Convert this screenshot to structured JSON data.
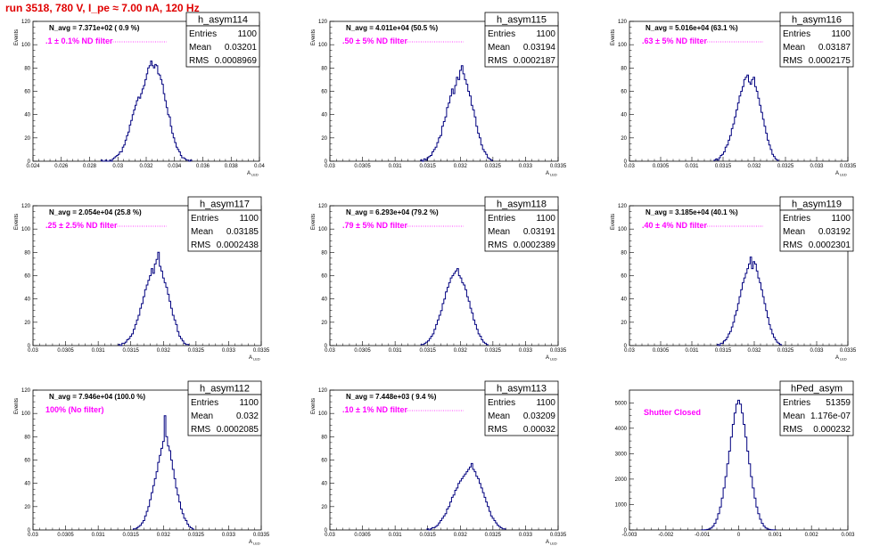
{
  "header": {
    "title": "run 3518,   780 V, I_pe ≈ 7.00 nA, 120 Hz"
  },
  "colors": {
    "title": "#e00000",
    "histogram": "#00007f",
    "filter_text": "#ff00ff"
  },
  "chart_data": [
    {
      "type": "histogram",
      "name": "h_asym114",
      "stats": {
        "Entries": "1100",
        "Mean": "0.03201",
        "RMS": "0.0008969"
      },
      "navg": "N_avg = 7.371e+02 ( 0.9 %)",
      "filter": ".1 ± 0.1% ND filter",
      "ylabel": "Events",
      "xlabel": "A_LED",
      "xlim": [
        0.024,
        0.04
      ],
      "ylim": [
        0,
        120
      ],
      "xticks": [
        "0.024",
        "0.026",
        "0.028",
        "0.03",
        "0.032",
        "0.034",
        "0.036",
        "0.038",
        "0.04"
      ],
      "yticks": [
        "0",
        "20",
        "40",
        "60",
        "80",
        "100",
        "120"
      ],
      "mean": 0.03201,
      "rms": 0.0008969,
      "peak": 86,
      "bin": 0.0001,
      "counts": [
        1,
        0,
        0,
        1,
        0,
        0,
        1,
        0,
        2,
        3,
        4,
        5,
        6,
        8,
        8,
        12,
        14,
        18,
        22,
        25,
        31,
        35,
        40,
        44,
        48,
        52,
        55,
        54,
        58,
        62,
        65,
        70,
        75,
        80,
        82,
        86,
        82,
        80,
        83,
        82,
        75,
        74,
        70,
        66,
        58,
        52,
        46,
        40,
        38,
        30,
        24,
        20,
        16,
        12,
        10,
        8,
        5,
        3,
        3,
        2,
        1,
        1,
        0,
        1
      ]
    },
    {
      "type": "histogram",
      "name": "h_asym115",
      "stats": {
        "Entries": "1100",
        "Mean": "0.03194",
        "RMS": "0.0002187"
      },
      "navg": "N_avg = 4.011e+04 (50.5 %)",
      "filter": ".50 ± 5% ND filter",
      "ylabel": "Events",
      "xlabel": "A_LED",
      "xlim": [
        0.03,
        0.0335
      ],
      "ylim": [
        0,
        120
      ],
      "xticks": [
        "0.03",
        "0.0305",
        "0.031",
        "0.0315",
        "0.032",
        "0.0325",
        "0.033",
        "0.0335"
      ],
      "yticks": [
        "0",
        "20",
        "40",
        "60",
        "80",
        "100",
        "120"
      ],
      "mean": 0.03194,
      "rms": 0.0002187,
      "peak": 82,
      "bin": 2.5e-05,
      "counts": [
        1,
        0,
        2,
        1,
        3,
        4,
        5,
        8,
        10,
        12,
        16,
        20,
        22,
        30,
        34,
        38,
        46,
        50,
        56,
        62,
        58,
        65,
        72,
        70,
        78,
        82,
        75,
        70,
        66,
        60,
        56,
        48,
        44,
        38,
        30,
        24,
        20,
        14,
        10,
        8,
        6,
        3,
        2,
        1
      ]
    },
    {
      "type": "histogram",
      "name": "h_asym116",
      "stats": {
        "Entries": "1100",
        "Mean": "0.03187",
        "RMS": "0.0002175"
      },
      "navg": "N_avg = 5.016e+04 (63.1 %)",
      "filter": ".63 ± 5% ND filter",
      "ylabel": "Events",
      "xlabel": "A_LED",
      "xlim": [
        0.03,
        0.0335
      ],
      "ylim": [
        0,
        120
      ],
      "xticks": [
        "0.03",
        "0.0305",
        "0.031",
        "0.0315",
        "0.032",
        "0.0325",
        "0.033",
        "0.0335"
      ],
      "yticks": [
        "0",
        "20",
        "40",
        "60",
        "80",
        "100",
        "120"
      ],
      "mean": 0.03187,
      "rms": 0.0002175,
      "peak": 74,
      "bin": 2.5e-05,
      "counts": [
        1,
        2,
        1,
        3,
        5,
        6,
        8,
        12,
        14,
        18,
        22,
        28,
        32,
        38,
        44,
        50,
        56,
        60,
        64,
        70,
        72,
        74,
        68,
        66,
        70,
        72,
        64,
        60,
        54,
        48,
        42,
        36,
        30,
        24,
        18,
        14,
        10,
        6,
        4,
        2,
        1
      ]
    },
    {
      "type": "histogram",
      "name": "h_asym117",
      "stats": {
        "Entries": "1100",
        "Mean": "0.03185",
        "RMS": "0.0002438"
      },
      "navg": "N_avg = 2.054e+04 (25.8 %)",
      "filter": ".25 ± 2.5% ND filter",
      "ylabel": "Events",
      "xlabel": "A_LED",
      "xlim": [
        0.03,
        0.0335
      ],
      "ylim": [
        0,
        120
      ],
      "xticks": [
        "0.03",
        "0.0305",
        "0.031",
        "0.0315",
        "0.032",
        "0.0325",
        "0.033",
        "0.0335"
      ],
      "yticks": [
        "0",
        "20",
        "40",
        "60",
        "80",
        "100",
        "120"
      ],
      "mean": 0.03185,
      "rms": 0.0002438,
      "peak": 80,
      "bin": 2.5e-05,
      "counts": [
        1,
        0,
        2,
        2,
        3,
        5,
        6,
        8,
        10,
        14,
        18,
        22,
        26,
        32,
        36,
        42,
        48,
        52,
        56,
        60,
        66,
        62,
        70,
        74,
        80,
        68,
        64,
        58,
        54,
        50,
        44,
        38,
        32,
        26,
        22,
        18,
        12,
        8,
        6,
        4,
        2,
        1,
        1
      ]
    },
    {
      "type": "histogram",
      "name": "h_asym118",
      "stats": {
        "Entries": "1100",
        "Mean": "0.03191",
        "RMS": "0.0002389"
      },
      "navg": "N_avg = 6.293e+04 (79.2 %)",
      "filter": ".79 ± 5% ND filter",
      "ylabel": "Events",
      "xlabel": "A_LED",
      "xlim": [
        0.03,
        0.0335
      ],
      "ylim": [
        0,
        120
      ],
      "xticks": [
        "0.03",
        "0.0305",
        "0.031",
        "0.0315",
        "0.032",
        "0.0325",
        "0.033",
        "0.0335"
      ],
      "yticks": [
        "0",
        "20",
        "40",
        "60",
        "80",
        "100",
        "120"
      ],
      "mean": 0.03191,
      "rms": 0.0002389,
      "peak": 66,
      "bin": 2.5e-05,
      "counts": [
        1,
        1,
        2,
        3,
        4,
        6,
        8,
        10,
        14,
        18,
        22,
        26,
        30,
        36,
        40,
        46,
        50,
        54,
        58,
        60,
        62,
        64,
        66,
        60,
        58,
        54,
        52,
        48,
        42,
        38,
        32,
        28,
        22,
        18,
        14,
        10,
        8,
        5,
        3,
        2,
        1
      ]
    },
    {
      "type": "histogram",
      "name": "h_asym119",
      "stats": {
        "Entries": "1100",
        "Mean": "0.03192",
        "RMS": "0.0002301"
      },
      "navg": "N_avg = 3.185e+04 (40.1 %)",
      "filter": ".40 ± 4% ND filter",
      "ylabel": "Events",
      "xlabel": "A_LED",
      "xlim": [
        0.03,
        0.0335
      ],
      "ylim": [
        0,
        120
      ],
      "xticks": [
        "0.03",
        "0.0305",
        "0.031",
        "0.0315",
        "0.032",
        "0.0325",
        "0.033",
        "0.0335"
      ],
      "yticks": [
        "0",
        "20",
        "40",
        "60",
        "80",
        "100",
        "120"
      ],
      "mean": 0.03192,
      "rms": 0.0002301,
      "peak": 76,
      "bin": 2.5e-05,
      "counts": [
        1,
        0,
        2,
        2,
        4,
        5,
        7,
        10,
        12,
        16,
        20,
        26,
        30,
        36,
        42,
        48,
        54,
        58,
        62,
        66,
        70,
        76,
        66,
        72,
        70,
        64,
        58,
        54,
        48,
        42,
        36,
        30,
        24,
        18,
        14,
        10,
        7,
        5,
        3,
        2,
        1
      ]
    },
    {
      "type": "histogram",
      "name": "h_asym112",
      "stats": {
        "Entries": "1100",
        "Mean": "0.032",
        "RMS": "0.0002085"
      },
      "navg": "N_avg = 7.946e+04 (100.0 %)",
      "filter": "100% (No filter)",
      "ylabel": "Events",
      "xlabel": "A_LED",
      "xlim": [
        0.03,
        0.0335
      ],
      "ylim": [
        0,
        120
      ],
      "xticks": [
        "0.03",
        "0.0305",
        "0.031",
        "0.0315",
        "0.032",
        "0.0325",
        "0.033",
        "0.0335"
      ],
      "yticks": [
        "0",
        "20",
        "40",
        "60",
        "80",
        "100",
        "120"
      ],
      "mean": 0.032,
      "rms": 0.0002085,
      "peak": 98,
      "bin": 2.5e-05,
      "counts": [
        1,
        1,
        2,
        3,
        4,
        6,
        8,
        12,
        16,
        20,
        26,
        32,
        38,
        44,
        50,
        58,
        64,
        70,
        76,
        98,
        80,
        72,
        68,
        60,
        52,
        44,
        36,
        30,
        24,
        18,
        14,
        10,
        8,
        5,
        3,
        2,
        1
      ]
    },
    {
      "type": "histogram",
      "name": "h_asym113",
      "stats": {
        "Entries": "1100",
        "Mean": "0.03209",
        "RMS": "0.00032"
      },
      "navg": "N_avg = 7.448e+03 ( 9.4 %)",
      "filter": ".10 ± 1% ND filter",
      "ylabel": "Events",
      "xlabel": "A_LED",
      "xlim": [
        0.03,
        0.0335
      ],
      "ylim": [
        0,
        120
      ],
      "xticks": [
        "0.03",
        "0.0305",
        "0.031",
        "0.0315",
        "0.032",
        "0.0325",
        "0.033",
        "0.0335"
      ],
      "yticks": [
        "0",
        "20",
        "40",
        "60",
        "80",
        "100",
        "120"
      ],
      "mean": 0.03209,
      "rms": 0.00032,
      "peak": 57,
      "bin": 2.5e-05,
      "counts": [
        1,
        0,
        1,
        2,
        2,
        3,
        4,
        6,
        8,
        10,
        12,
        14,
        18,
        20,
        24,
        28,
        30,
        34,
        36,
        40,
        42,
        44,
        46,
        48,
        50,
        52,
        54,
        57,
        52,
        50,
        46,
        44,
        40,
        36,
        32,
        28,
        24,
        20,
        16,
        12,
        10,
        8,
        6,
        4,
        3,
        2,
        1,
        1
      ]
    },
    {
      "type": "histogram",
      "name": "hPed_asym",
      "stats": {
        "Entries": "51359",
        "Mean": "1.176e-07",
        "RMS": "0.000232"
      },
      "navg": "",
      "filter": "Shutter Closed",
      "ylabel": "",
      "xlabel": "",
      "xlim": [
        -0.003,
        0.003
      ],
      "ylim": [
        0,
        5500
      ],
      "xticks": [
        "-0.003",
        "-0.002",
        "-0.001",
        "0",
        "0.001",
        "0.002",
        "0.003"
      ],
      "yticks": [
        "0",
        "1000",
        "2000",
        "3000",
        "4000",
        "5000"
      ],
      "mean": 0.0,
      "rms": 0.000232,
      "peak": 5100,
      "bin": 5e-05,
      "counts": [
        2,
        5,
        10,
        20,
        40,
        80,
        150,
        260,
        420,
        640,
        900,
        1250,
        1650,
        2100,
        2600,
        3100,
        3650,
        4150,
        4600,
        4950,
        5100,
        4950,
        4600,
        4150,
        3650,
        3100,
        2600,
        2100,
        1650,
        1250,
        900,
        640,
        420,
        260,
        150,
        80,
        40,
        20,
        10,
        5,
        2
      ]
    }
  ]
}
